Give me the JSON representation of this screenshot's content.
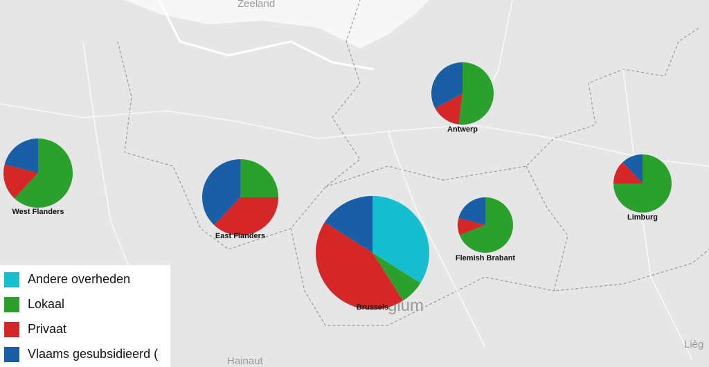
{
  "map_labels": [
    "Zeeland",
    "Hainaut",
    "gium",
    "Lièg"
  ],
  "series": [
    {
      "name": "Andere overheden",
      "color": "#17becf"
    },
    {
      "name": "Lokaal",
      "color": "#2ca02c"
    },
    {
      "name": "Privaat",
      "color": "#d62728"
    },
    {
      "name": "Vlaams gesubsidieerd (",
      "color": "#1a5ea6"
    }
  ],
  "chart_data": [
    {
      "type": "pie",
      "title": "Antwerp",
      "values": [
        0,
        52,
        15,
        33
      ]
    },
    {
      "type": "pie",
      "title": "West Flanders",
      "values": [
        0,
        62,
        17,
        21
      ]
    },
    {
      "type": "pie",
      "title": "East Flanders",
      "values": [
        0,
        25,
        37,
        38
      ]
    },
    {
      "type": "pie",
      "title": "Brussels",
      "values": [
        34,
        7,
        43,
        16
      ]
    },
    {
      "type": "pie",
      "title": "Flemish Brabant",
      "values": [
        0,
        69,
        10,
        21
      ]
    },
    {
      "type": "pie",
      "title": "Limburg",
      "values": [
        0,
        75,
        13,
        12
      ]
    }
  ]
}
